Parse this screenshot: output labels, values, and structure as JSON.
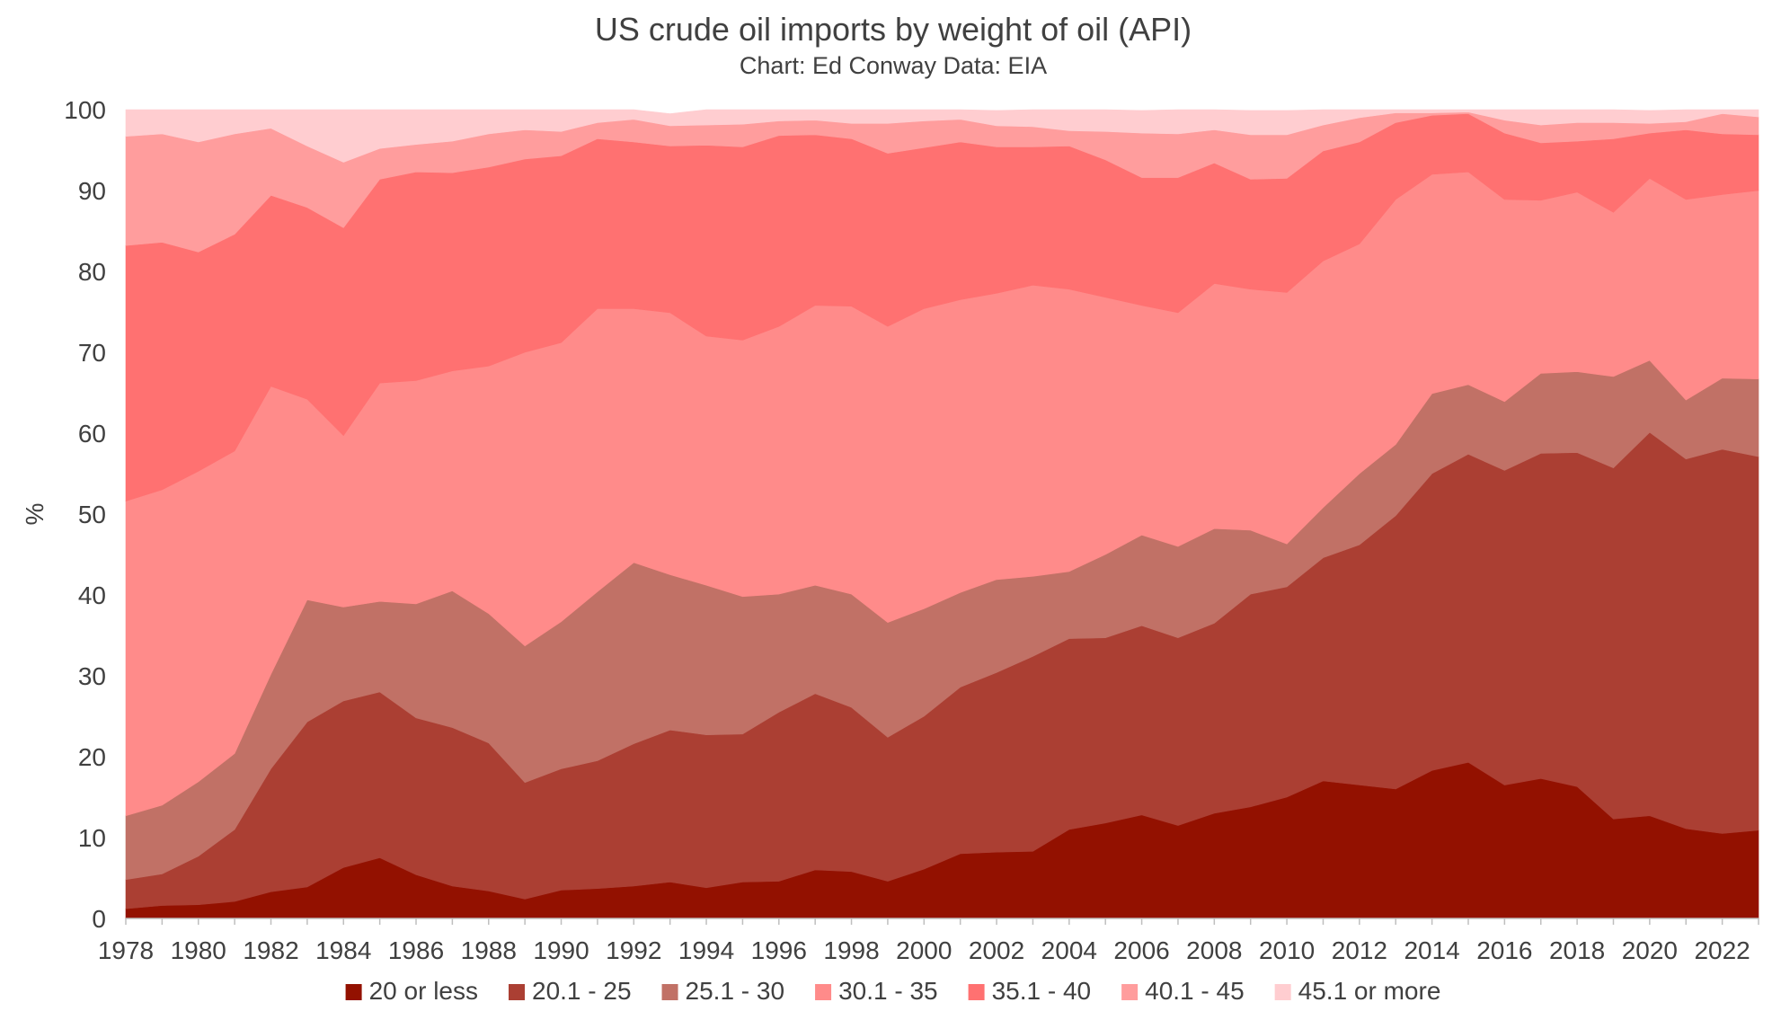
{
  "chart_data": {
    "type": "area",
    "stacked": true,
    "title": "US crude oil imports by weight of oil (API)",
    "subtitle": "Chart: Ed Conway Data: EIA",
    "xlabel": "",
    "ylabel": "%",
    "ylim": [
      0,
      100
    ],
    "yticks": [
      0,
      10,
      20,
      30,
      40,
      50,
      60,
      70,
      80,
      90,
      100
    ],
    "xticks": [
      1978,
      1980,
      1982,
      1984,
      1986,
      1988,
      1990,
      1992,
      1994,
      1996,
      1998,
      2000,
      2002,
      2004,
      2006,
      2008,
      2010,
      2012,
      2014,
      2016,
      2018,
      2020,
      2022
    ],
    "grid": false,
    "legend_position": "bottom",
    "x": [
      1978,
      1979,
      1980,
      1981,
      1982,
      1983,
      1984,
      1985,
      1986,
      1987,
      1988,
      1989,
      1990,
      1991,
      1992,
      1993,
      1994,
      1995,
      1996,
      1997,
      1998,
      1999,
      2000,
      2001,
      2002,
      2003,
      2004,
      2005,
      2006,
      2007,
      2008,
      2009,
      2010,
      2011,
      2012,
      2013,
      2014,
      2015,
      2016,
      2017,
      2018,
      2019,
      2020,
      2021,
      2022,
      2023
    ],
    "series": [
      {
        "name": "20 or less",
        "color": "#931100",
        "values": [
          1.2,
          1.6,
          1.7,
          2.1,
          3.3,
          3.9,
          6.3,
          7.5,
          5.4,
          4.0,
          3.4,
          2.4,
          3.5,
          3.7,
          4.0,
          4.5,
          3.8,
          4.5,
          4.6,
          6.0,
          5.8,
          4.6,
          6.1,
          8.0,
          8.2,
          8.3,
          11.0,
          11.8,
          12.8,
          11.5,
          13.0,
          13.8,
          15.0,
          17.0,
          16.5,
          16.0,
          18.3,
          19.3,
          16.5,
          17.3,
          16.3,
          12.3,
          12.7,
          11.1,
          10.5,
          10.9
        ]
      },
      {
        "name": "20.1 - 25",
        "color": "#AB3F33",
        "values": [
          3.6,
          3.9,
          6.0,
          8.9,
          15.2,
          20.4,
          20.6,
          20.5,
          19.4,
          19.6,
          18.3,
          14.4,
          15.0,
          15.8,
          17.6,
          18.8,
          18.9,
          18.3,
          20.9,
          21.8,
          20.3,
          17.8,
          18.9,
          20.6,
          22.2,
          24.1,
          23.6,
          22.9,
          23.4,
          23.2,
          23.5,
          26.3,
          26.0,
          27.6,
          29.7,
          33.8,
          36.7,
          38.1,
          38.9,
          40.2,
          41.3,
          43.4,
          47.4,
          45.7,
          47.5,
          46.2
        ]
      },
      {
        "name": "25.1 - 30",
        "color": "#C17166",
        "values": [
          7.9,
          8.5,
          9.2,
          9.4,
          11.7,
          15.1,
          11.6,
          11.2,
          14.1,
          16.9,
          16.0,
          16.9,
          18.2,
          20.9,
          22.4,
          19.2,
          18.5,
          17.0,
          14.6,
          13.4,
          14.0,
          14.2,
          13.3,
          11.7,
          11.5,
          9.9,
          8.3,
          10.3,
          11.2,
          11.3,
          11.7,
          7.9,
          5.3,
          6.2,
          8.8,
          8.8,
          9.9,
          8.6,
          8.5,
          9.9,
          10.0,
          11.3,
          8.9,
          7.3,
          8.8,
          9.6
        ]
      },
      {
        "name": "30.1 - 35",
        "color": "#FF8B8A",
        "values": [
          38.9,
          39.0,
          38.4,
          37.4,
          35.6,
          24.8,
          21.2,
          27.0,
          27.6,
          27.2,
          30.6,
          36.3,
          34.5,
          35.0,
          31.4,
          32.4,
          30.8,
          31.7,
          33.1,
          34.6,
          35.6,
          36.6,
          37.1,
          36.2,
          35.4,
          36.0,
          34.9,
          31.8,
          28.4,
          28.9,
          30.3,
          29.8,
          31.1,
          30.5,
          28.4,
          30.3,
          27.1,
          26.3,
          25.0,
          21.4,
          22.2,
          20.3,
          22.5,
          24.8,
          22.7,
          23.3
        ]
      },
      {
        "name": "35.1 - 40",
        "color": "#FF7171",
        "values": [
          31.6,
          30.6,
          27.1,
          26.8,
          23.6,
          23.7,
          25.7,
          25.2,
          25.8,
          24.5,
          24.6,
          23.9,
          23.1,
          21.0,
          20.6,
          20.6,
          23.6,
          23.9,
          23.6,
          21.1,
          20.7,
          21.4,
          19.9,
          19.5,
          18.1,
          17.1,
          17.7,
          17.0,
          15.8,
          16.7,
          14.9,
          13.6,
          14.1,
          13.6,
          12.6,
          9.5,
          7.3,
          7.2,
          8.2,
          7.1,
          6.3,
          9.1,
          5.6,
          8.6,
          7.5,
          6.9
        ]
      },
      {
        "name": "40.1 - 45",
        "color": "#FF9D9D",
        "values": [
          13.5,
          13.4,
          13.6,
          12.4,
          8.3,
          7.6,
          8.1,
          3.8,
          3.4,
          3.9,
          4.1,
          3.6,
          3.0,
          2.0,
          2.8,
          2.5,
          2.5,
          2.8,
          1.8,
          1.8,
          1.9,
          3.7,
          3.3,
          2.8,
          2.6,
          2.5,
          1.9,
          3.5,
          5.5,
          5.4,
          4.1,
          5.5,
          5.4,
          3.2,
          3.0,
          1.2,
          0.3,
          0.2,
          1.6,
          2.2,
          2.3,
          2.0,
          1.2,
          1.0,
          2.5,
          2.2
        ]
      },
      {
        "name": "45.1 or more",
        "color": "#FFCDD0",
        "values": [
          3.3,
          3.0,
          4.0,
          3.0,
          2.3,
          4.5,
          6.5,
          4.8,
          4.3,
          3.9,
          3.0,
          2.5,
          2.7,
          1.6,
          1.2,
          1.5,
          1.9,
          1.8,
          1.5,
          1.3,
          1.7,
          1.7,
          1.4,
          1.2,
          1.9,
          2.1,
          2.6,
          2.7,
          2.8,
          3.0,
          2.5,
          3.0,
          3.0,
          1.9,
          1.0,
          0.4,
          0.4,
          0.3,
          1.3,
          1.9,
          1.6,
          1.6,
          1.6,
          1.5,
          0.5,
          0.9
        ]
      }
    ]
  }
}
